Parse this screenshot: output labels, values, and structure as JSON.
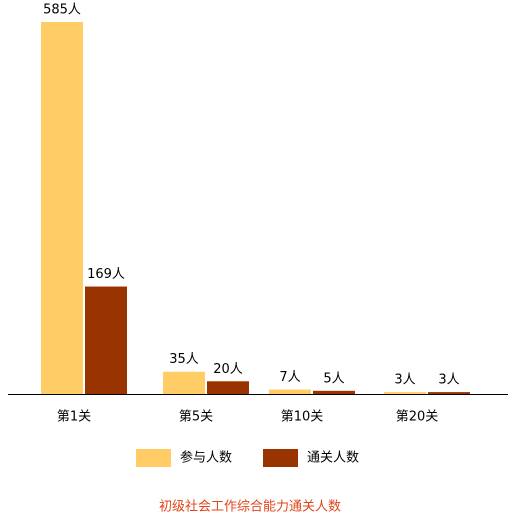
{
  "chart_data": {
    "type": "bar",
    "title": "初级社会工作综合能力通关人数",
    "categories": [
      "第1关",
      "第5关",
      "第10关",
      "第20关"
    ],
    "series": [
      {
        "name": "参与人数",
        "color": "#ffcc66",
        "values": [
          585,
          35,
          7,
          3
        ],
        "value_labels": [
          "585人",
          "35人",
          "7人",
          "3人"
        ]
      },
      {
        "name": "通关人数",
        "color": "#993300",
        "values": [
          169,
          20,
          5,
          3
        ],
        "value_labels": [
          "169人",
          "20人",
          "5人",
          "3人"
        ]
      }
    ],
    "legend": "bottom"
  }
}
